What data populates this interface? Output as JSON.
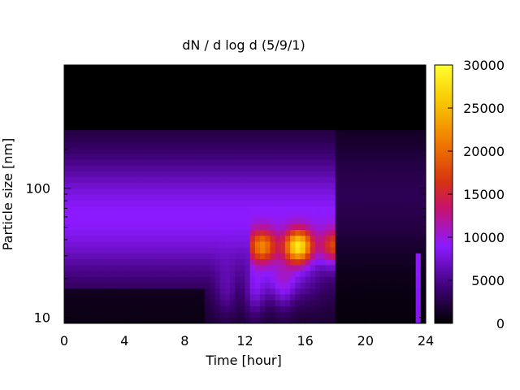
{
  "chart_data": {
    "type": "heatmap",
    "title": "dN / d log d (5/9/1)",
    "xlabel": "Time [hour]",
    "ylabel": "Particle size [nm]",
    "x_range": [
      0,
      24
    ],
    "x_ticks": [
      0,
      4,
      8,
      12,
      16,
      20,
      24
    ],
    "y_scale": "log",
    "y_range": [
      9,
      900
    ],
    "y_ticks": [
      10,
      100
    ],
    "colorbar": {
      "colormap": "black-purple-red-orange-yellow",
      "range": [
        0,
        30000
      ],
      "ticks": [
        0,
        5000,
        10000,
        15000,
        20000,
        25000,
        30000
      ]
    },
    "no_data_color": "#000000",
    "approx_features": [
      {
        "feature": "background mode",
        "time_hours": [
          0,
          18
        ],
        "size_nm": 60,
        "value": 8000
      },
      {
        "feature": "growth event peak",
        "time_hours": [
          12.5,
          18
        ],
        "size_nm": 35,
        "value": 27000
      },
      {
        "feature": "low-concentration region after change",
        "time_hours": [
          18,
          24
        ],
        "size_nm": 80,
        "value": 3000
      }
    ]
  }
}
